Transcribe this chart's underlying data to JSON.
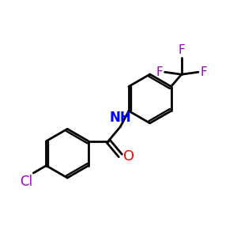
{
  "background_color": "#ffffff",
  "bond_color": "#000000",
  "cl_color": "#9900cc",
  "f_color": "#9900cc",
  "n_color": "#0000ff",
  "o_color": "#ff0000",
  "bond_width": 2.0,
  "figsize": [
    3.0,
    3.0
  ],
  "dpi": 100,
  "xlim": [
    0,
    10
  ],
  "ylim": [
    0,
    10
  ]
}
